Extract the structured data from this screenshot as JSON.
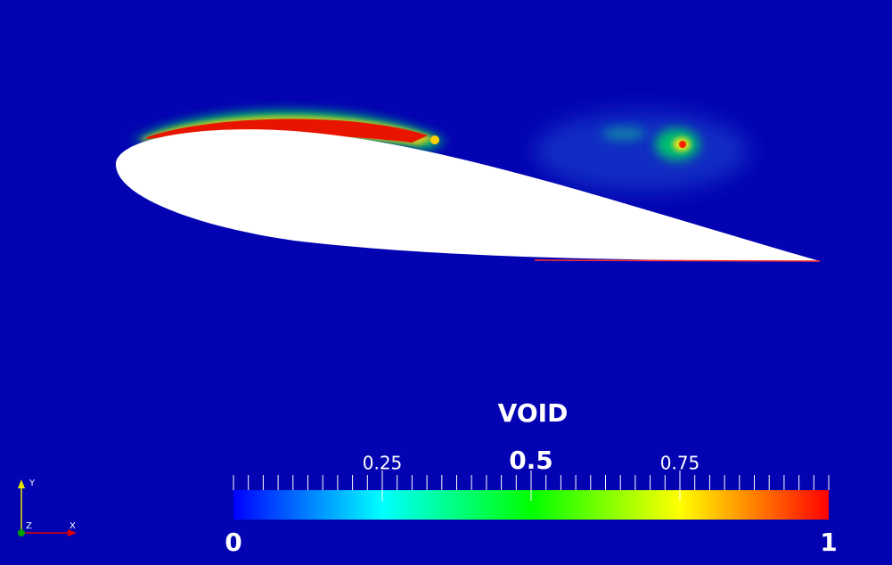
{
  "legend": {
    "title": "VOID",
    "range": [
      0,
      1
    ],
    "ticks": [
      0.25,
      0.5,
      0.75
    ]
  },
  "axes_triad": {
    "y": "Y",
    "z": "Z",
    "x": "X"
  }
}
